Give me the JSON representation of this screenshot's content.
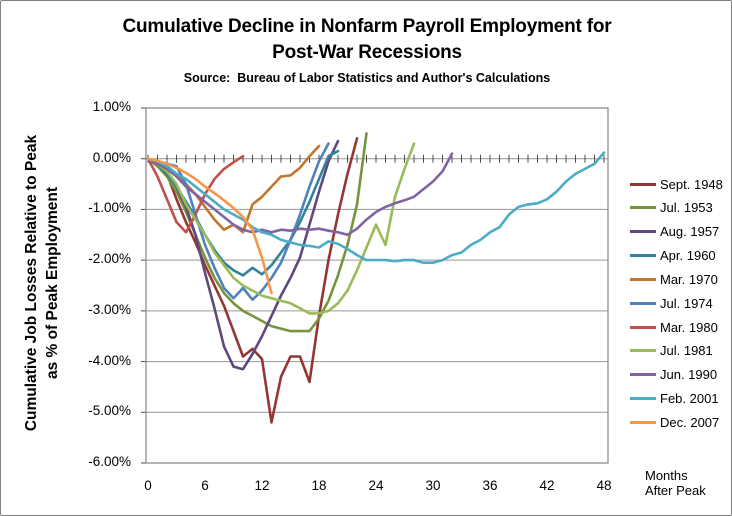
{
  "header": {
    "title_line1": "Cumulative Decline in Nonfarm Payroll Employment for",
    "title_line2": "Post-War Recessions",
    "subtitle": "Source:  Bureau of Labor Statistics and Author's Calculations"
  },
  "y_axis": {
    "title_line1": "Cumulative Job Losses Relative to Peak",
    "title_line2": "as % of Peak Employment",
    "tick_labels": [
      "1.00%",
      "0.00%",
      "-1.00%",
      "-2.00%",
      "-3.00%",
      "-4.00%",
      "-5.00%",
      "-6.00%"
    ]
  },
  "x_axis": {
    "tick_labels": [
      "0",
      "6",
      "12",
      "18",
      "24",
      "30",
      "36",
      "42",
      "48"
    ],
    "note_line1": "Months",
    "note_line2": "After Peak"
  },
  "colors": {
    "background": "#FFFFFF",
    "plot_border": "#848484",
    "gridline": "#969696",
    "tick": "#4d4d4d",
    "text": "#000000"
  },
  "chart_data": {
    "type": "line",
    "title": "Cumulative Decline in Nonfarm Payroll Employment for Post-War Recessions",
    "subtitle": "Source: Bureau of Labor Statistics and Author's Calculations",
    "xlabel": "Months After Peak",
    "ylabel": "Cumulative Job Losses Relative to Peak as % of Peak Employment",
    "x_description": "x value of each point = months after employment peak (series index 0..n)",
    "y_unit": "percent",
    "xlim": [
      0,
      48
    ],
    "ylim": [
      -6,
      1
    ],
    "x_ticks": [
      0,
      6,
      12,
      18,
      24,
      30,
      36,
      42,
      48
    ],
    "y_ticks_percent": [
      1,
      0,
      -1,
      -2,
      -3,
      -4,
      -5,
      -6
    ],
    "grid": true,
    "legend_position": "right",
    "series": [
      {
        "name": "Sept. 1948",
        "color": "#943634",
        "values": [
          0,
          -0.1,
          -0.3,
          -0.8,
          -1.25,
          -1.65,
          -2.1,
          -2.5,
          -2.9,
          -3.4,
          -3.9,
          -3.75,
          -3.95,
          -5.2,
          -4.3,
          -3.9,
          -3.9,
          -4.4,
          -3.1,
          -2.0,
          -1.1,
          -0.3,
          0.4
        ]
      },
      {
        "name": "Jul. 1953",
        "color": "#77933C",
        "values": [
          0,
          -0.15,
          -0.35,
          -0.65,
          -1.05,
          -1.5,
          -1.95,
          -2.35,
          -2.65,
          -2.85,
          -3.0,
          -3.1,
          -3.2,
          -3.3,
          -3.35,
          -3.4,
          -3.4,
          -3.4,
          -3.15,
          -2.8,
          -2.3,
          -1.7,
          -0.9,
          0.5
        ]
      },
      {
        "name": "Aug. 1957",
        "color": "#5F497A",
        "values": [
          0,
          -0.1,
          -0.3,
          -0.55,
          -0.95,
          -1.5,
          -2.25,
          -2.95,
          -3.7,
          -4.1,
          -4.15,
          -3.85,
          -3.5,
          -3.1,
          -2.7,
          -2.35,
          -1.95,
          -1.3,
          -0.65,
          -0.05,
          0.35
        ]
      },
      {
        "name": "Apr. 1960",
        "color": "#31849B",
        "values": [
          0,
          -0.1,
          -0.3,
          -0.55,
          -0.85,
          -1.15,
          -1.5,
          -1.8,
          -2.05,
          -2.2,
          -2.3,
          -2.15,
          -2.28,
          -2.1,
          -1.85,
          -1.6,
          -1.25,
          -0.85,
          -0.4,
          0.05,
          0.15
        ]
      },
      {
        "name": "Mar. 1970",
        "color": "#C0762C",
        "values": [
          0,
          -0.05,
          -0.15,
          -0.3,
          -0.5,
          -0.7,
          -0.95,
          -1.2,
          -1.4,
          -1.3,
          -1.45,
          -0.9,
          -0.75,
          -0.55,
          -0.35,
          -0.33,
          -0.18,
          0.05,
          0.25
        ]
      },
      {
        "name": "Jul. 1974",
        "color": "#4F81BD",
        "values": [
          0,
          -0.05,
          -0.1,
          -0.15,
          -0.5,
          -1.1,
          -1.7,
          -2.15,
          -2.55,
          -2.75,
          -2.55,
          -2.78,
          -2.6,
          -2.35,
          -2.05,
          -1.6,
          -1.1,
          -0.55,
          -0.05,
          0.3
        ]
      },
      {
        "name": "Mar. 1980",
        "color": "#C0504D",
        "values": [
          0,
          -0.35,
          -0.8,
          -1.25,
          -1.45,
          -1.1,
          -0.7,
          -0.4,
          -0.2,
          -0.07,
          0.05
        ]
      },
      {
        "name": "Jul. 1981",
        "color": "#9BBB59",
        "values": [
          0,
          -0.1,
          -0.25,
          -0.5,
          -0.9,
          -1.2,
          -1.5,
          -1.85,
          -2.1,
          -2.35,
          -2.5,
          -2.6,
          -2.7,
          -2.75,
          -2.8,
          -2.85,
          -2.95,
          -3.05,
          -3.05,
          -3.0,
          -2.85,
          -2.6,
          -2.2,
          -1.75,
          -1.3,
          -1.7,
          -0.75,
          -0.2,
          0.3
        ]
      },
      {
        "name": "Jun. 1990",
        "color": "#8064A2",
        "values": [
          0,
          -0.1,
          -0.2,
          -0.35,
          -0.55,
          -0.7,
          -0.85,
          -1.0,
          -1.15,
          -1.3,
          -1.4,
          -1.45,
          -1.4,
          -1.45,
          -1.4,
          -1.42,
          -1.38,
          -1.4,
          -1.38,
          -1.42,
          -1.45,
          -1.5,
          -1.38,
          -1.2,
          -1.05,
          -0.95,
          -0.88,
          -0.82,
          -0.75,
          -0.6,
          -0.45,
          -0.25,
          0.1
        ]
      },
      {
        "name": "Feb. 2001",
        "color": "#4BACC6",
        "values": [
          0,
          -0.05,
          -0.15,
          -0.3,
          -0.4,
          -0.55,
          -0.7,
          -0.85,
          -1.0,
          -1.1,
          -1.2,
          -1.35,
          -1.45,
          -1.5,
          -1.6,
          -1.65,
          -1.7,
          -1.72,
          -1.75,
          -1.63,
          -1.68,
          -1.78,
          -1.9,
          -2.0,
          -2.0,
          -2.0,
          -2.02,
          -2.0,
          -2.0,
          -2.05,
          -2.05,
          -2.0,
          -1.9,
          -1.85,
          -1.7,
          -1.6,
          -1.45,
          -1.35,
          -1.1,
          -0.95,
          -0.9,
          -0.88,
          -0.8,
          -0.65,
          -0.45,
          -0.3,
          -0.2,
          -0.1,
          0.12
        ]
      },
      {
        "name": "Dec. 2007",
        "color": "#F79646",
        "values": [
          0,
          -0.04,
          -0.1,
          -0.18,
          -0.28,
          -0.4,
          -0.55,
          -0.68,
          -0.82,
          -0.97,
          -1.15,
          -1.4,
          -1.95,
          -2.65
        ]
      }
    ]
  }
}
